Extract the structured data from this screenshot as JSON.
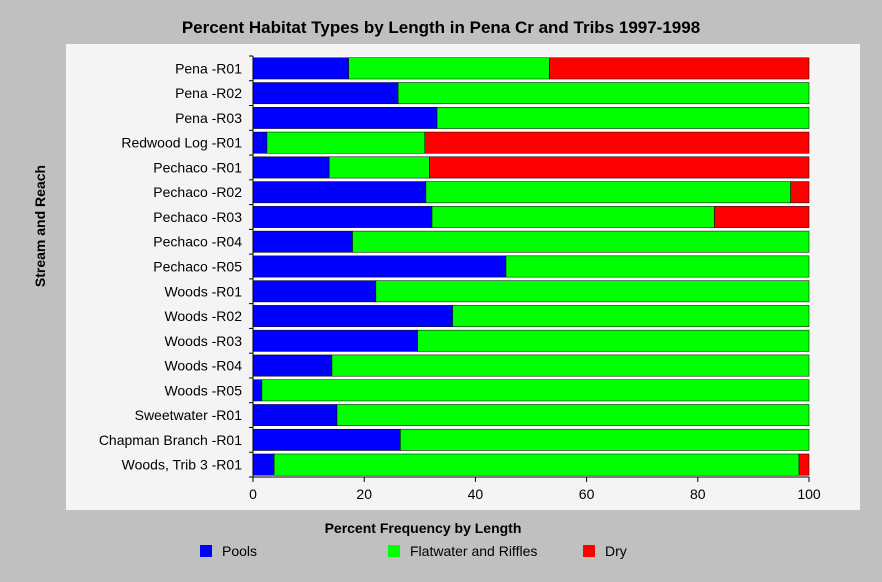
{
  "chart_data": {
    "type": "bar",
    "orientation": "horizontal",
    "stacked": true,
    "title": "Percent Habitat Types by Length in Pena Cr and Tribs 1997-1998",
    "xlabel": "Percent Frequency by Length",
    "ylabel": "Stream and Reach",
    "xlim": [
      0,
      100
    ],
    "xticks": [
      "0",
      "20",
      "40",
      "60",
      "80",
      "100"
    ],
    "categories": [
      "Pena -R01",
      "Pena -R02",
      "Pena -R03",
      "Redwood Log -R01",
      "Pechaco -R01",
      "Pechaco -R02",
      "Pechaco -R03",
      "Pechaco -R04",
      "Pechaco -R05",
      "Woods -R01",
      "Woods -R02",
      "Woods -R03",
      "Woods -R04",
      "Woods -R05",
      "Sweetwater -R01",
      "Chapman Branch -R01",
      "Woods, Trib 3 -R01"
    ],
    "series": [
      {
        "name": "Pools",
        "color": "#0000ff",
        "values": [
          17.2,
          26.1,
          33.1,
          2.5,
          13.7,
          31.1,
          32.2,
          17.9,
          45.5,
          22.1,
          35.9,
          29.6,
          14.2,
          1.6,
          15.1,
          26.5,
          3.8
        ]
      },
      {
        "name": "Flatwater and Riffles",
        "color": "#00ff00",
        "values": [
          36.1,
          73.9,
          66.9,
          28.4,
          18.0,
          65.6,
          50.8,
          82.1,
          54.5,
          77.9,
          64.1,
          70.4,
          85.8,
          98.4,
          84.9,
          73.5,
          94.4
        ]
      },
      {
        "name": "Dry",
        "color": "#ff0000",
        "values": [
          46.7,
          0,
          0,
          69.1,
          68.3,
          3.3,
          17.0,
          0,
          0,
          0,
          0,
          0,
          0,
          0,
          0,
          0,
          1.8
        ]
      }
    ],
    "grid": false,
    "legend": "bottom"
  }
}
